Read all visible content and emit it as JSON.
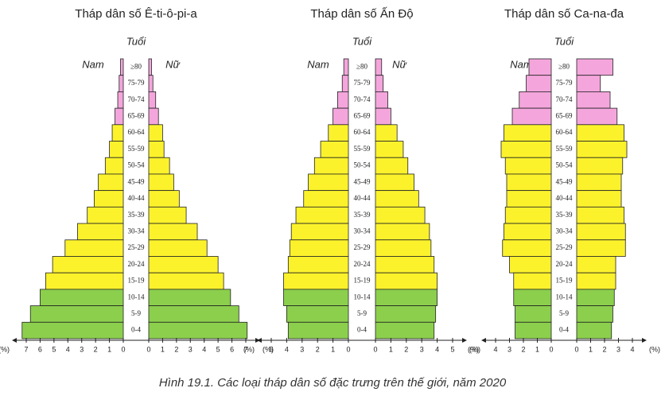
{
  "chart_data": [
    {
      "type": "pyramid",
      "title": "Tháp dân số Ê-ti-ô-pi-a",
      "age_label": "Tuổi",
      "unit_label": "(%)",
      "categories": [
        "≥80",
        "75-79",
        "70-74",
        "65-69",
        "60-64",
        "55-59",
        "50-54",
        "45-49",
        "40-44",
        "35-39",
        "30-34",
        "25-29",
        "20-24",
        "15-19",
        "10-14",
        "5-9",
        "0-4"
      ],
      "bar_colors": [
        "#f4a6dc",
        "#f4a6dc",
        "#f4a6dc",
        "#f4a6dc",
        "#fbf22c",
        "#fbf22c",
        "#fbf22c",
        "#fbf22c",
        "#fbf22c",
        "#fbf22c",
        "#fbf22c",
        "#fbf22c",
        "#fbf22c",
        "#fbf22c",
        "#8ccf4d",
        "#8ccf4d",
        "#8ccf4d"
      ],
      "series": [
        {
          "name": "Nam",
          "side": "left",
          "values": [
            0.2,
            0.3,
            0.4,
            0.6,
            0.8,
            1.0,
            1.3,
            1.8,
            2.1,
            2.6,
            3.3,
            4.2,
            5.1,
            5.6,
            6.0,
            6.7,
            7.3
          ]
        },
        {
          "name": "Nữ",
          "side": "right",
          "values": [
            0.2,
            0.3,
            0.5,
            0.7,
            1.0,
            1.1,
            1.5,
            1.8,
            2.2,
            2.7,
            3.5,
            4.2,
            5.0,
            5.4,
            5.9,
            6.5,
            7.1
          ]
        }
      ],
      "xlim": [
        0,
        7
      ],
      "xticks": [
        0,
        1,
        2,
        3,
        4,
        5,
        6,
        7
      ]
    },
    {
      "type": "pyramid",
      "title": "Tháp dân số Ấn Độ",
      "age_label": "Tuổi",
      "unit_label": "(%)",
      "categories": [
        "≥80",
        "75-79",
        "70-74",
        "65-69",
        "60-64",
        "55-59",
        "50-54",
        "45-49",
        "40-44",
        "35-39",
        "30-34",
        "25-29",
        "20-24",
        "15-19",
        "10-14",
        "5-9",
        "0-4"
      ],
      "bar_colors": [
        "#f4a6dc",
        "#f4a6dc",
        "#f4a6dc",
        "#f4a6dc",
        "#fbf22c",
        "#fbf22c",
        "#fbf22c",
        "#fbf22c",
        "#fbf22c",
        "#fbf22c",
        "#fbf22c",
        "#fbf22c",
        "#fbf22c",
        "#fbf22c",
        "#8ccf4d",
        "#8ccf4d",
        "#8ccf4d"
      ],
      "series": [
        {
          "name": "Nam",
          "side": "left",
          "values": [
            0.3,
            0.4,
            0.7,
            1.0,
            1.3,
            1.8,
            2.2,
            2.6,
            2.9,
            3.4,
            3.7,
            3.8,
            3.9,
            4.2,
            4.2,
            4.0,
            3.9
          ]
        },
        {
          "name": "Nữ",
          "side": "right",
          "values": [
            0.4,
            0.5,
            0.8,
            1.0,
            1.4,
            1.8,
            2.1,
            2.5,
            2.8,
            3.2,
            3.5,
            3.6,
            3.8,
            4.0,
            4.0,
            3.9,
            3.8
          ]
        }
      ],
      "xlim": [
        0,
        5
      ],
      "xticks": [
        0,
        1,
        2,
        3,
        4,
        5
      ]
    },
    {
      "type": "pyramid",
      "title": "Tháp dân số Ca-na-đa",
      "age_label": "Tuổi",
      "unit_label": "(%)",
      "categories": [
        "≥80",
        "75-79",
        "70-74",
        "65-69",
        "60-64",
        "55-59",
        "50-54",
        "45-49",
        "40-44",
        "35-39",
        "30-34",
        "25-29",
        "20-24",
        "15-19",
        "10-14",
        "5-9",
        "0-4"
      ],
      "bar_colors": [
        "#f4a6dc",
        "#f4a6dc",
        "#f4a6dc",
        "#f4a6dc",
        "#fbf22c",
        "#fbf22c",
        "#fbf22c",
        "#fbf22c",
        "#fbf22c",
        "#fbf22c",
        "#fbf22c",
        "#fbf22c",
        "#fbf22c",
        "#fbf22c",
        "#8ccf4d",
        "#8ccf4d",
        "#8ccf4d"
      ],
      "series": [
        {
          "name": "Nam",
          "side": "left",
          "values": [
            1.6,
            1.8,
            2.3,
            2.8,
            3.4,
            3.6,
            3.3,
            3.2,
            3.2,
            3.3,
            3.4,
            3.5,
            3.0,
            2.7,
            2.7,
            2.6,
            2.6
          ]
        },
        {
          "name": "Nữ",
          "side": "right",
          "values": [
            2.6,
            1.7,
            2.4,
            2.9,
            3.4,
            3.6,
            3.3,
            3.2,
            3.2,
            3.4,
            3.5,
            3.5,
            2.8,
            2.8,
            2.7,
            2.6,
            2.5
          ]
        }
      ],
      "xlim": [
        0,
        4
      ],
      "xticks": [
        0,
        1,
        2,
        3,
        4
      ]
    }
  ],
  "caption": "Hình 19.1. Các loại tháp dân số đặc trưng trên thế giới, năm 2020"
}
